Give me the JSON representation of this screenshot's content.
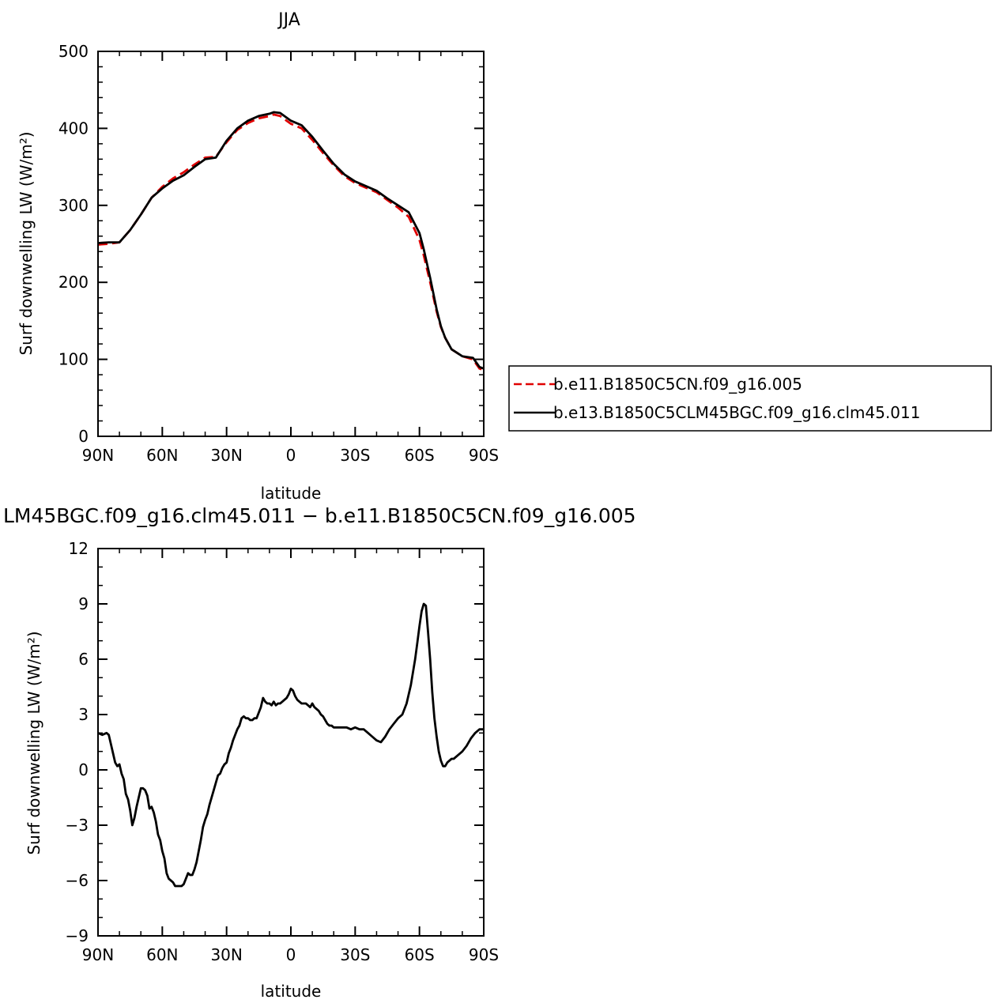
{
  "chart_data": [
    {
      "type": "line",
      "title": "JJA",
      "xlabel": "latitude",
      "ylabel": "Surf downwelling LW (W/m²)",
      "xlim": [
        90,
        -90
      ],
      "ylim": [
        0,
        500
      ],
      "xticks": [
        90,
        60,
        30,
        0,
        -30,
        -60,
        -90
      ],
      "xtick_labels": [
        "90N",
        "60N",
        "30N",
        "0",
        "30S",
        "60S",
        "90S"
      ],
      "yticks": [
        0,
        100,
        200,
        300,
        400,
        500
      ],
      "ytick_labels": [
        "0",
        "100",
        "200",
        "300",
        "400",
        "500"
      ],
      "legend": {
        "placement": "right-outside",
        "entries": [
          "b.e11.B1850C5CN.f09_g16.005",
          "b.e13.B1850C5CLM45BGC.f09_g16.clm45.011"
        ]
      },
      "series": [
        {
          "name": "b.e11.B1850C5CN.f09_g16.005",
          "color": "#e00000",
          "dash": "dashed",
          "x": [
            90,
            85,
            80,
            75,
            70,
            65,
            60,
            55,
            50,
            45,
            40,
            35,
            30,
            25,
            20,
            15,
            10,
            8,
            5,
            0,
            -5,
            -10,
            -15,
            -20,
            -25,
            -30,
            -35,
            -40,
            -45,
            -50,
            -55,
            -60,
            -62,
            -65,
            -68,
            -70,
            -72,
            -75,
            -80,
            -85,
            -88,
            -90
          ],
          "y": [
            249,
            250,
            252,
            268,
            288,
            310,
            324,
            335,
            343,
            353,
            362,
            363,
            382,
            398,
            407,
            413,
            416,
            418,
            416,
            406,
            400,
            385,
            368,
            352,
            338,
            329,
            323,
            317,
            307,
            297,
            285,
            255,
            235,
            200,
            162,
            142,
            128,
            113,
            104,
            100,
            88,
            86
          ]
        },
        {
          "name": "b.e13.B1850C5CLM45BGC.f09_g16.clm45.011",
          "color": "#000000",
          "dash": "solid",
          "x": [
            90,
            85,
            80,
            75,
            70,
            65,
            60,
            55,
            50,
            45,
            40,
            35,
            30,
            25,
            20,
            15,
            10,
            8,
            5,
            0,
            -5,
            -10,
            -15,
            -20,
            -25,
            -30,
            -35,
            -40,
            -45,
            -50,
            -55,
            -60,
            -62,
            -65,
            -68,
            -70,
            -72,
            -75,
            -80,
            -85,
            -88,
            -90
          ],
          "y": [
            251,
            252,
            252,
            268,
            288,
            310,
            322,
            332,
            339,
            350,
            360,
            362,
            384,
            400,
            410,
            416,
            419,
            421,
            420,
            410,
            404,
            389,
            371,
            354,
            340,
            331,
            325,
            319,
            309,
            300,
            291,
            264,
            243,
            206,
            165,
            143,
            128,
            113,
            104,
            102,
            90,
            88
          ]
        }
      ]
    },
    {
      "type": "line",
      "title": "LM45BGC.f09_g16.clm45.011 − b.e11.B1850C5CN.f09_g16.005",
      "xlabel": "latitude",
      "ylabel": "Surf downwelling LW (W/m²)",
      "xlim": [
        90,
        -90
      ],
      "ylim": [
        -9,
        12
      ],
      "xticks": [
        90,
        60,
        30,
        0,
        -30,
        -60,
        -90
      ],
      "xtick_labels": [
        "90N",
        "60N",
        "30N",
        "0",
        "30S",
        "60S",
        "90S"
      ],
      "yticks": [
        -9,
        -6,
        -3,
        0,
        3,
        6,
        9,
        12
      ],
      "ytick_labels": [
        "−9",
        "−6",
        "−3",
        "0",
        "3",
        "6",
        "9",
        "12"
      ],
      "series": [
        {
          "color": "#000000",
          "dash": "solid",
          "x": [
            90,
            88,
            86,
            85,
            84,
            83,
            82,
            81,
            80,
            79,
            78,
            77,
            76,
            75,
            74,
            73,
            72,
            71,
            70,
            69,
            68,
            67,
            66,
            65,
            64,
            63,
            62,
            61,
            60,
            59,
            58,
            57,
            56,
            55,
            54,
            53,
            52,
            51,
            50,
            49,
            48,
            47,
            46,
            45,
            44,
            43,
            42,
            41,
            40,
            39,
            38,
            37,
            36,
            35,
            34,
            33,
            32,
            31,
            30,
            29,
            28,
            27,
            26,
            25,
            24,
            23,
            22,
            21,
            20,
            19,
            18,
            17,
            16,
            15,
            14,
            13,
            12,
            11,
            10,
            9,
            8,
            7,
            6,
            5,
            4,
            3,
            2,
            1,
            0,
            -1,
            -2,
            -3,
            -4,
            -5,
            -6,
            -7,
            -8,
            -9,
            -10,
            -11,
            -12,
            -13,
            -14,
            -15,
            -16,
            -17,
            -18,
            -19,
            -20,
            -22,
            -24,
            -26,
            -28,
            -30,
            -32,
            -34,
            -36,
            -38,
            -40,
            -42,
            -44,
            -45,
            -46,
            -48,
            -50,
            -52,
            -54,
            -56,
            -58,
            -59,
            -60,
            -61,
            -62,
            -63,
            -64,
            -65,
            -66,
            -67,
            -68,
            -69,
            -70,
            -71,
            -72,
            -73,
            -74,
            -75,
            -76,
            -78,
            -80,
            -82,
            -84,
            -86,
            -88,
            -90
          ],
          "y": [
            2.0,
            1.9,
            2.0,
            1.9,
            1.4,
            0.9,
            0.4,
            0.2,
            0.3,
            -0.2,
            -0.5,
            -1.3,
            -1.6,
            -2.2,
            -3.0,
            -2.6,
            -2.0,
            -1.5,
            -1.0,
            -1.0,
            -1.1,
            -1.4,
            -2.1,
            -2.0,
            -2.3,
            -2.8,
            -3.5,
            -3.8,
            -4.4,
            -4.8,
            -5.6,
            -5.9,
            -6.0,
            -6.1,
            -6.3,
            -6.3,
            -6.3,
            -6.3,
            -6.2,
            -5.9,
            -5.6,
            -5.7,
            -5.7,
            -5.4,
            -5.0,
            -4.4,
            -3.8,
            -3.1,
            -2.7,
            -2.4,
            -1.9,
            -1.5,
            -1.1,
            -0.7,
            -0.3,
            -0.2,
            0.1,
            0.3,
            0.4,
            0.9,
            1.2,
            1.6,
            1.9,
            2.2,
            2.4,
            2.8,
            2.9,
            2.8,
            2.8,
            2.7,
            2.7,
            2.8,
            2.8,
            3.1,
            3.4,
            3.9,
            3.7,
            3.6,
            3.6,
            3.5,
            3.7,
            3.5,
            3.6,
            3.6,
            3.7,
            3.8,
            3.9,
            4.1,
            4.4,
            4.3,
            4.0,
            3.8,
            3.7,
            3.6,
            3.6,
            3.6,
            3.5,
            3.4,
            3.6,
            3.4,
            3.3,
            3.2,
            3.0,
            2.9,
            2.7,
            2.5,
            2.4,
            2.4,
            2.3,
            2.3,
            2.3,
            2.3,
            2.2,
            2.3,
            2.2,
            2.2,
            2.0,
            1.8,
            1.6,
            1.5,
            1.8,
            2.0,
            2.2,
            2.5,
            2.8,
            3.0,
            3.6,
            4.6,
            6.0,
            6.9,
            7.8,
            8.6,
            9.0,
            8.9,
            7.5,
            6.0,
            4.2,
            2.8,
            1.8,
            1.0,
            0.5,
            0.2,
            0.2,
            0.4,
            0.5,
            0.6,
            0.6,
            0.8,
            1.0,
            1.3,
            1.7,
            2.0,
            2.2,
            2.2
          ]
        }
      ]
    }
  ]
}
